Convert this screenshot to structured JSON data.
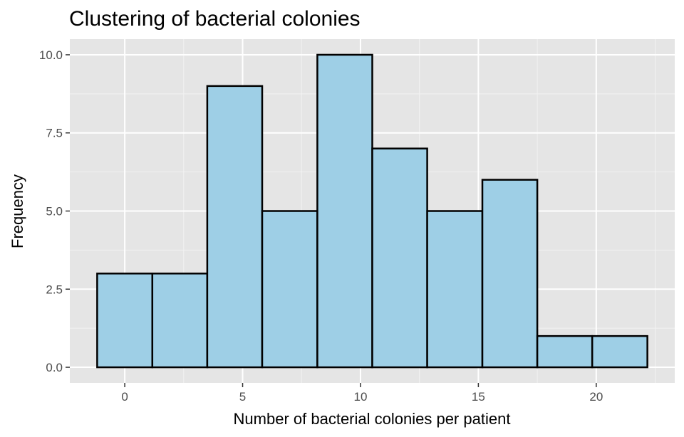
{
  "chart_data": {
    "type": "bar",
    "subtype": "histogram",
    "title": "Clustering of bacterial colonies",
    "xlabel": "Number of bacterial colonies per patient",
    "ylabel": "Frequency",
    "bin_width": 2.33,
    "bins": [
      {
        "x0": -1.17,
        "x1": 1.17,
        "count": 3
      },
      {
        "x0": 1.17,
        "x1": 3.5,
        "count": 3
      },
      {
        "x0": 3.5,
        "x1": 5.83,
        "count": 9
      },
      {
        "x0": 5.83,
        "x1": 8.17,
        "count": 5
      },
      {
        "x0": 8.17,
        "x1": 10.5,
        "count": 10
      },
      {
        "x0": 10.5,
        "x1": 12.83,
        "count": 7
      },
      {
        "x0": 12.83,
        "x1": 15.17,
        "count": 5
      },
      {
        "x0": 15.17,
        "x1": 17.5,
        "count": 6
      },
      {
        "x0": 17.5,
        "x1": 19.83,
        "count": 1
      },
      {
        "x0": 19.83,
        "x1": 22.17,
        "count": 1
      }
    ],
    "xlim": [
      -2.33,
      23.33
    ],
    "ylim": [
      -0.5,
      10.5
    ],
    "xticks": [
      0,
      5,
      10,
      15,
      20
    ],
    "xtick_labels": [
      "0",
      "5",
      "10",
      "15",
      "20"
    ],
    "yticks": [
      0,
      2.5,
      5,
      7.5,
      10
    ],
    "ytick_labels": [
      "0.0",
      "2.5",
      "5.0",
      "7.5",
      "10.0"
    ],
    "grid": true,
    "legend": "none",
    "colors": {
      "bar_fill": "#9ecfe6",
      "bar_stroke": "#000000",
      "panel_background": "#e5e5e5",
      "grid_major": "#ffffff",
      "grid_minor": "#f2f2f2"
    }
  }
}
